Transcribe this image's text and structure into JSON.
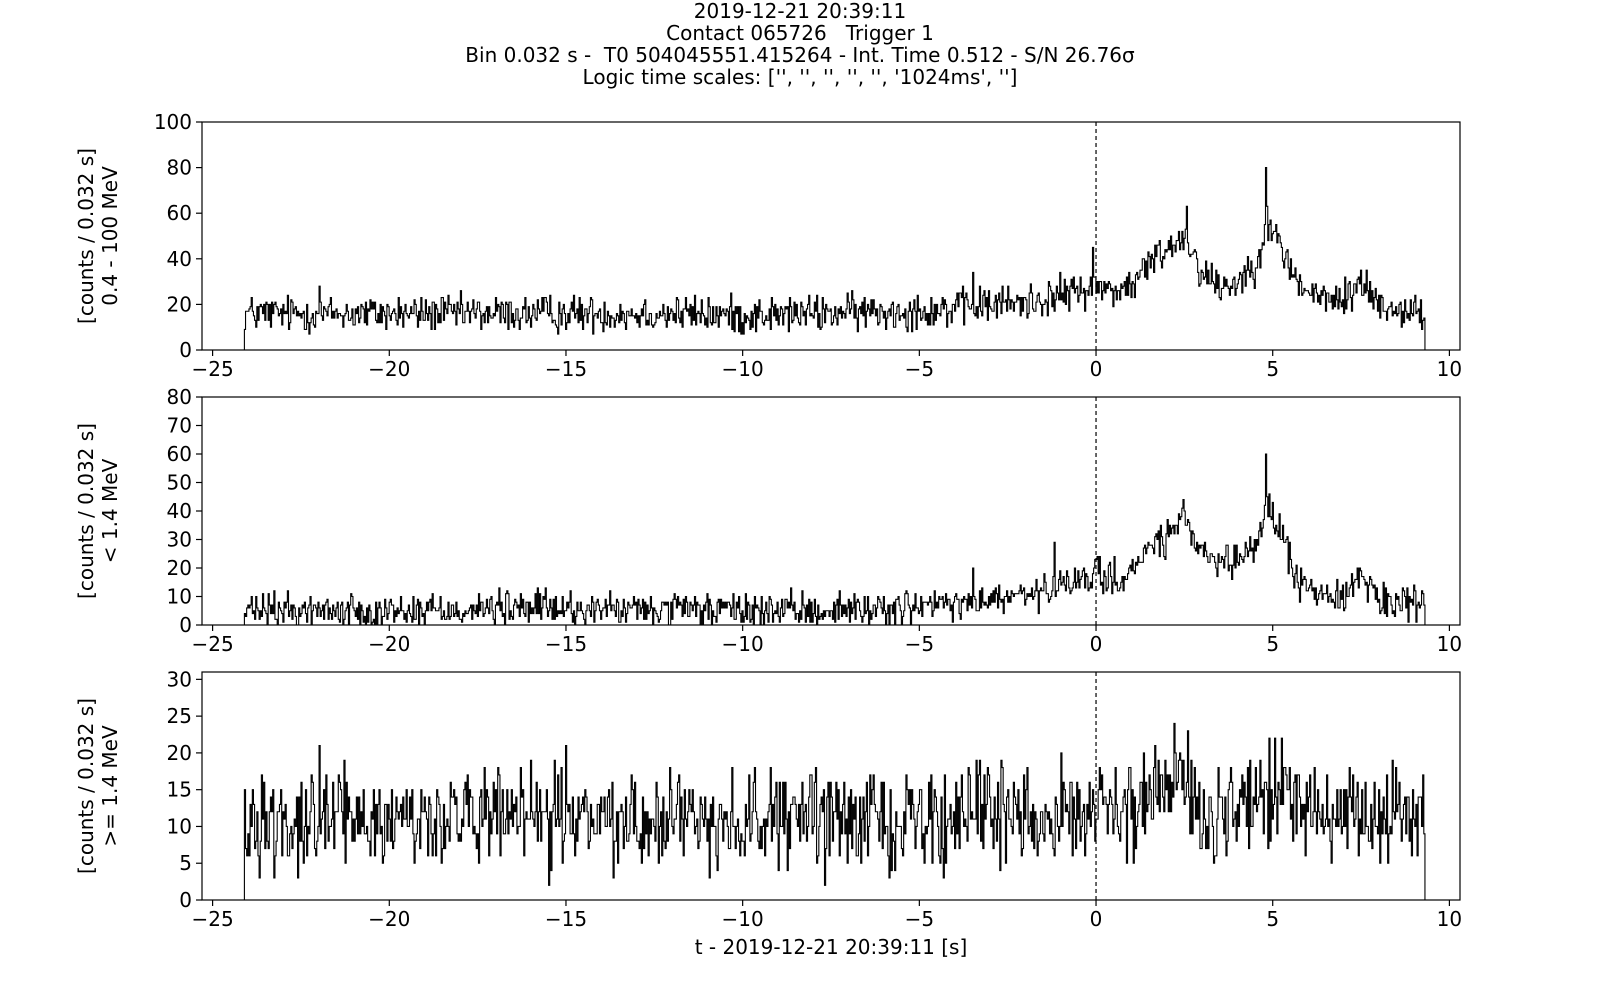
{
  "title_lines": [
    "2019-12-21 20:39:11",
    "Contact 065726   Trigger 1",
    "Bin 0.032 s -  T0 504045551.415264 - Int. Time 0.512 - S/N 26.76σ",
    "Logic time scales: ['', '', '', '', '', '1024ms', '']"
  ],
  "chart_data": [
    {
      "type": "line",
      "step": true,
      "ylabel": [
        "[counts / 0.032 s]",
        "0.4 - 100 MeV"
      ],
      "xlim": [
        -25.3,
        10.3
      ],
      "ylim": [
        0,
        100
      ],
      "xticks": [
        -25,
        -20,
        -15,
        -10,
        -5,
        0,
        5,
        10
      ],
      "xtick_labels": [
        "−25",
        "−20",
        "−15",
        "−10",
        "−5",
        "0",
        "5",
        "10"
      ],
      "yticks": [
        0,
        20,
        40,
        60,
        80,
        100
      ],
      "yticks_labels": [
        "0",
        "20",
        "40",
        "60",
        "80",
        "100"
      ],
      "trigger_marker_x": 0,
      "bin_width": 0.032,
      "x_start": -24.1,
      "x_end": 9.3,
      "profile": [
        [
          -24.1,
          16
        ],
        [
          -22.0,
          16
        ],
        [
          -20.0,
          16
        ],
        [
          -18.0,
          16
        ],
        [
          -16.0,
          16
        ],
        [
          -14.0,
          16
        ],
        [
          -12.0,
          16
        ],
        [
          -10.0,
          15
        ],
        [
          -8.0,
          16
        ],
        [
          -6.0,
          17
        ],
        [
          -4.0,
          18
        ],
        [
          -3.0,
          20
        ],
        [
          -2.0,
          21
        ],
        [
          -1.0,
          24
        ],
        [
          0.0,
          28
        ],
        [
          0.5,
          26
        ],
        [
          1.0,
          28
        ],
        [
          1.5,
          38
        ],
        [
          2.0,
          45
        ],
        [
          2.5,
          50
        ],
        [
          3.0,
          34
        ],
        [
          3.5,
          28
        ],
        [
          4.0,
          30
        ],
        [
          4.5,
          38
        ],
        [
          4.8,
          55
        ],
        [
          5.2,
          46
        ],
        [
          5.6,
          32
        ],
        [
          6.0,
          25
        ],
        [
          6.5,
          22
        ],
        [
          7.0,
          22
        ],
        [
          7.5,
          30
        ],
        [
          8.0,
          20
        ],
        [
          8.5,
          18
        ],
        [
          9.3,
          16
        ]
      ],
      "noise": 4,
      "spikes": [
        [
          -22.0,
          28
        ],
        [
          -3.5,
          34
        ],
        [
          -0.1,
          45
        ],
        [
          2.55,
          63
        ],
        [
          4.8,
          80
        ]
      ]
    },
    {
      "type": "line",
      "step": true,
      "ylabel": [
        "[counts / 0.032 s]",
        "< 1.4 MeV"
      ],
      "xlim": [
        -25.3,
        10.3
      ],
      "ylim": [
        0,
        80
      ],
      "xticks": [
        -25,
        -20,
        -15,
        -10,
        -5,
        0,
        5,
        10
      ],
      "xtick_labels": [
        "−25",
        "−20",
        "−15",
        "−10",
        "−5",
        "0",
        "5",
        "10"
      ],
      "yticks": [
        0,
        10,
        20,
        30,
        40,
        50,
        60,
        70,
        80
      ],
      "yticks_labels": [
        "0",
        "10",
        "20",
        "30",
        "40",
        "50",
        "60",
        "70",
        "80"
      ],
      "trigger_marker_x": 0,
      "bin_width": 0.032,
      "x_start": -24.1,
      "x_end": 9.3,
      "profile": [
        [
          -24.1,
          5
        ],
        [
          -20.0,
          5
        ],
        [
          -16.0,
          6
        ],
        [
          -12.0,
          5
        ],
        [
          -8.0,
          5
        ],
        [
          -6.0,
          6
        ],
        [
          -4.0,
          7
        ],
        [
          -3.0,
          9
        ],
        [
          -2.0,
          10
        ],
        [
          -1.0,
          13
        ],
        [
          0.0,
          18
        ],
        [
          0.5,
          16
        ],
        [
          1.0,
          18
        ],
        [
          1.5,
          28
        ],
        [
          2.0,
          30
        ],
        [
          2.5,
          38
        ],
        [
          3.0,
          24
        ],
        [
          3.5,
          20
        ],
        [
          4.0,
          22
        ],
        [
          4.5,
          28
        ],
        [
          4.8,
          42
        ],
        [
          5.2,
          34
        ],
        [
          5.6,
          18
        ],
        [
          6.0,
          12
        ],
        [
          6.5,
          10
        ],
        [
          7.0,
          11
        ],
        [
          7.5,
          18
        ],
        [
          8.0,
          9
        ],
        [
          8.5,
          7
        ],
        [
          9.3,
          6
        ]
      ],
      "noise": 3,
      "spikes": [
        [
          -15.6,
          13
        ],
        [
          -3.5,
          20
        ],
        [
          -1.2,
          29
        ],
        [
          2.45,
          44
        ],
        [
          4.8,
          60
        ]
      ]
    },
    {
      "type": "line",
      "step": true,
      "ylabel": [
        "[counts / 0.032 s]",
        ">= 1.4 MeV"
      ],
      "xlabel": "t - 2019-12-21 20:39:11 [s]",
      "xlim": [
        -25.3,
        10.3
      ],
      "ylim": [
        0,
        31
      ],
      "xticks": [
        -25,
        -20,
        -15,
        -10,
        -5,
        0,
        5,
        10
      ],
      "xtick_labels": [
        "−25",
        "−20",
        "−15",
        "−10",
        "−5",
        "0",
        "5",
        "10"
      ],
      "yticks": [
        0,
        5,
        10,
        15,
        20,
        25,
        30
      ],
      "yticks_labels": [
        "0",
        "5",
        "10",
        "15",
        "20",
        "25",
        "30"
      ],
      "trigger_marker_x": 0,
      "bin_width": 0.032,
      "x_start": -24.1,
      "x_end": 9.3,
      "profile": [
        [
          -24.1,
          11
        ],
        [
          -20.0,
          11
        ],
        [
          -15.0,
          11
        ],
        [
          -10.0,
          11
        ],
        [
          -5.0,
          11
        ],
        [
          -2.0,
          12
        ],
        [
          0.0,
          12
        ],
        [
          1.0,
          12
        ],
        [
          2.0,
          15
        ],
        [
          2.5,
          15
        ],
        [
          3.0,
          12
        ],
        [
          4.0,
          12
        ],
        [
          5.0,
          15
        ],
        [
          6.0,
          12
        ],
        [
          7.0,
          11
        ],
        [
          8.0,
          11
        ],
        [
          9.3,
          11
        ]
      ],
      "noise": 3.2,
      "spikes": [
        [
          -22.0,
          21
        ],
        [
          -15.0,
          21
        ],
        [
          -1.0,
          20
        ],
        [
          2.2,
          24
        ],
        [
          2.6,
          23
        ],
        [
          4.9,
          22
        ]
      ]
    }
  ]
}
